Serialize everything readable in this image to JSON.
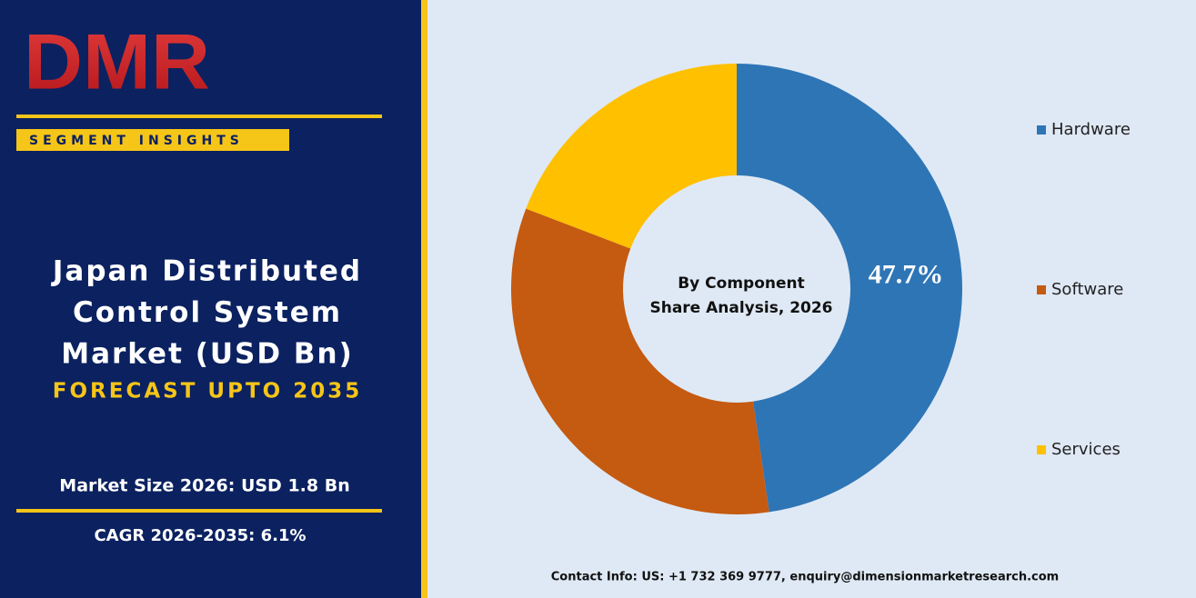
{
  "logo": "DMR",
  "badge": "SEGMENT INSIGHTS",
  "title_lines": [
    "Japan Distributed",
    "Control System",
    "Market (USD Bn)"
  ],
  "forecast": "FORECAST UPTO 2035",
  "market_size": "Market Size 2026: USD 1.8 Bn",
  "cagr": "CAGR 2026-2035: 6.1%",
  "contact": "Contact Info: US: +1 732 369 9777, enquiry@dimensionmarketresearch.com",
  "chart_data": {
    "type": "donut",
    "center_text": [
      "By Component",
      "Share Analysis, 2026"
    ],
    "categories": [
      "Hardware",
      "Software",
      "Services"
    ],
    "values": [
      47.7,
      33.1,
      19.2
    ],
    "value_labels": [
      "47.7%",
      null,
      null
    ],
    "colors": [
      "#2e75b6",
      "#c55a11",
      "#ffc000"
    ],
    "legend": "right"
  }
}
